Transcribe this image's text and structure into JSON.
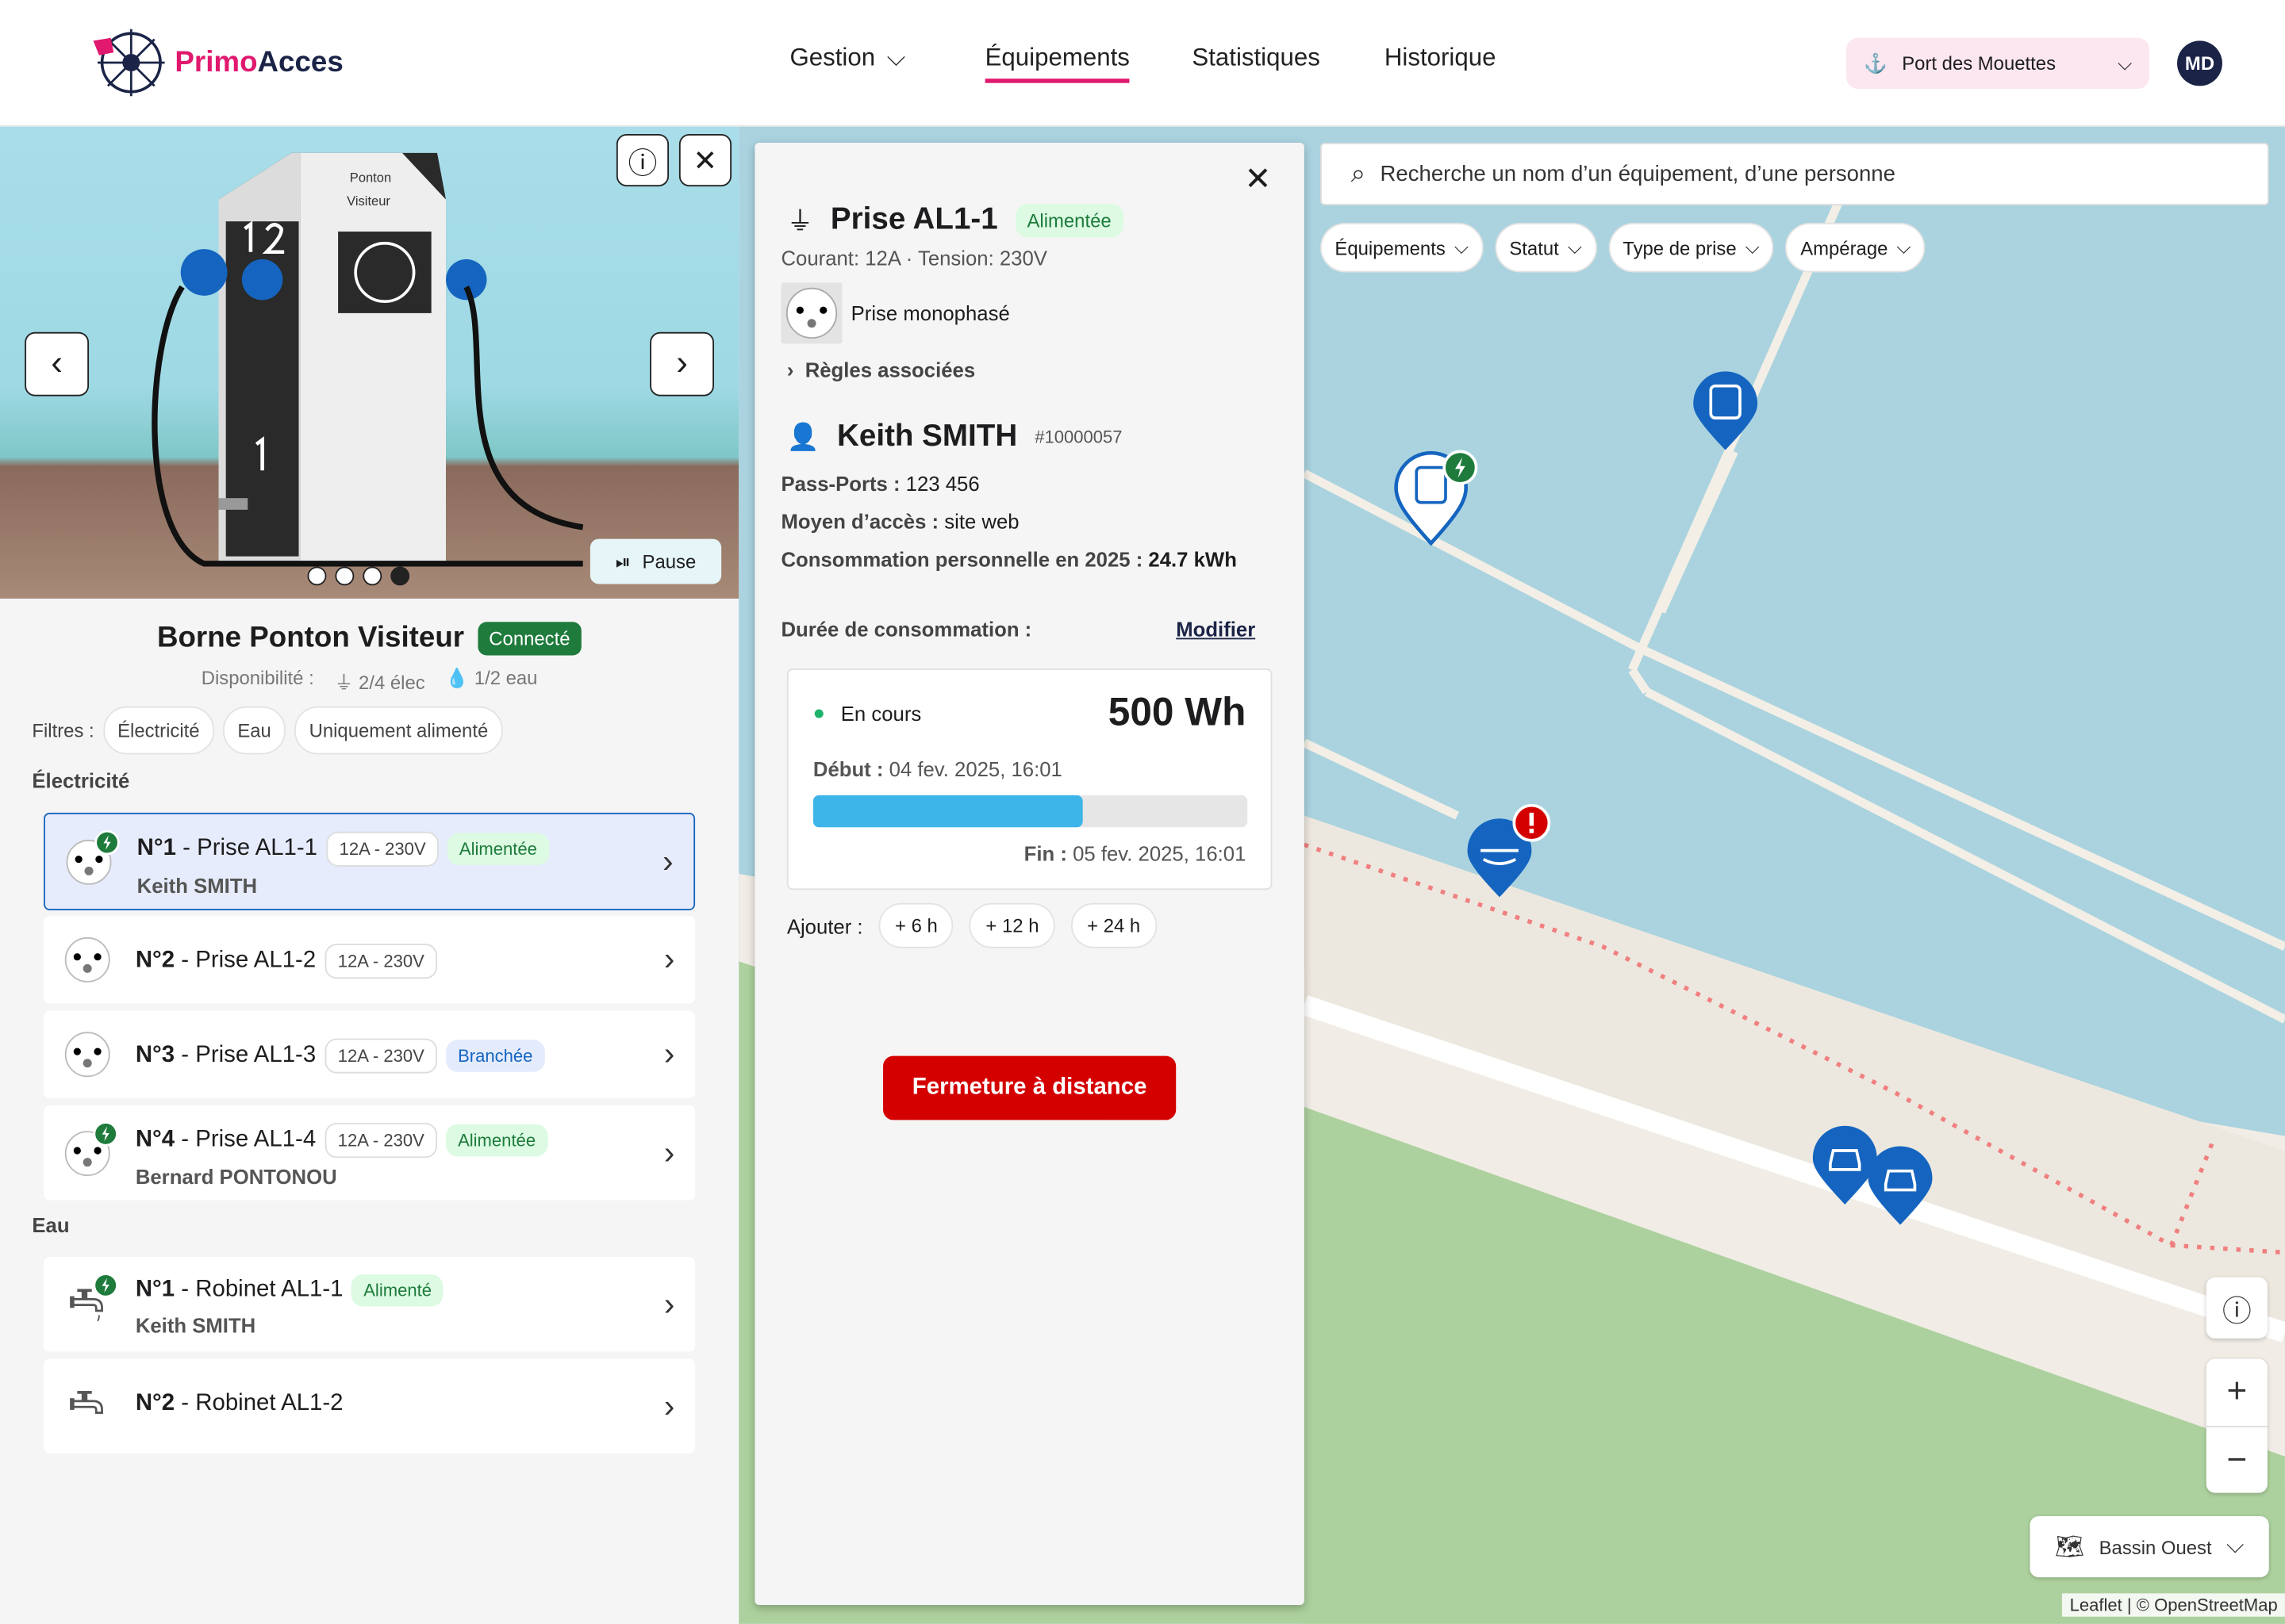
{
  "header": {
    "brand_a": "Primo",
    "brand_b": "Acces",
    "nav": [
      {
        "label": "Gestion"
      },
      {
        "label": "Équipements"
      },
      {
        "label": "Statistiques"
      },
      {
        "label": "Historique"
      }
    ],
    "port": "Port des Mouettes",
    "avatar": "MD"
  },
  "photo": {
    "sign_line1": "Ponton",
    "sign_line2": "Visiteur",
    "pause": "Pause",
    "slides": 4,
    "current_slide": 4
  },
  "borne": {
    "title": "Borne Ponton Visiteur",
    "status": "Connecté",
    "dispo_label": "Disponibilité :",
    "elec": "2/4 élec",
    "eau": "1/2 eau"
  },
  "filters": {
    "label": "Filtres :",
    "items": [
      "Électricité",
      "Eau",
      "Uniquement alimenté"
    ]
  },
  "sections": {
    "elec": "Électricité",
    "eau": "Eau"
  },
  "elec_items": [
    {
      "num": "N°1",
      "name": " - Prise AL1-1",
      "spec": "12A - 230V",
      "status": "Alimentée",
      "user": "Keith SMITH"
    },
    {
      "num": "N°2",
      "name": " - Prise AL1-2",
      "spec": "12A - 230V"
    },
    {
      "num": "N°3",
      "name": " - Prise AL1-3",
      "spec": "12A - 230V",
      "status": "Branchée"
    },
    {
      "num": "N°4",
      "name": " - Prise AL1-4",
      "spec": "12A - 230V",
      "status": "Alimentée",
      "user": "Bernard PONTONOU"
    }
  ],
  "eau_items": [
    {
      "num": "N°1",
      "name": " - Robinet AL1-1",
      "status": "Alimenté",
      "user": "Keith SMITH"
    },
    {
      "num": "N°2",
      "name": " - Robinet AL1-2"
    }
  ],
  "detail": {
    "title": "Prise AL1-1",
    "status": "Alimentée",
    "specs": "Courant: 12A · Tension: 230V",
    "type": "Prise monophasé",
    "rules": "Règles associées",
    "user": "Keith SMITH",
    "user_id": "#10000057",
    "passports_label": "Pass-Ports :",
    "passports": "123 456",
    "access_label": "Moyen d’accès :",
    "access": "site web",
    "conso_label": "Consommation personnelle en 2025 :",
    "conso": "24.7 kWh",
    "duree_label": "Durée de consommation :",
    "modifier": "Modifier",
    "state": "En cours",
    "energy": "500 Wh",
    "start_label": "Début :",
    "start": "04 fev. 2025, 16:01",
    "progress": 0.62,
    "end_label": "Fin :",
    "end": "05 fev. 2025, 16:01",
    "add_label": "Ajouter :",
    "add": [
      "6 h",
      "12 h",
      "24 h"
    ],
    "remote_close": "Fermeture à distance"
  },
  "map": {
    "search_placeholder": "Recherche un nom d’un équipement, d’une personne",
    "filters": [
      "Équipements",
      "Statut",
      "Type de prise",
      "Ampérage"
    ],
    "zone": "Bassin Ouest",
    "attribution": "Leaflet | © OpenStreetMap"
  },
  "colors": {
    "accent": "#e0196f",
    "navy": "#1b2447",
    "green": "#1e7b3c",
    "blue": "#1565c0",
    "red": "#d40000",
    "progress": "#3db5e8"
  }
}
